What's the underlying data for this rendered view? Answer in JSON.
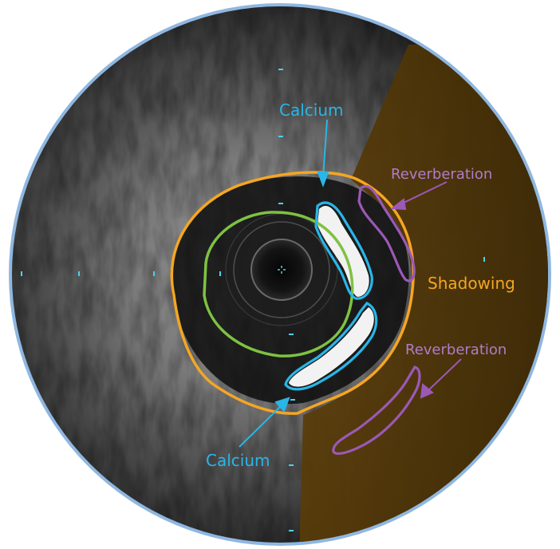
{
  "figure": {
    "annotations": {
      "calcium_top": "Calcium",
      "calcium_bottom": "Calcium",
      "reverberation_top": "Reverberation",
      "reverberation_bottom": "Reverberation",
      "shadowing": "Shadowing"
    },
    "colors": {
      "frame_ring": "#8fb7e0",
      "calcium": "#29b6e8",
      "lumen_border": "#7ec242",
      "vessel_border": "#f5a623",
      "shadow_region": "#6b4a10",
      "reverberation": "#9b59b6",
      "shadowing_text": "#f5a623"
    }
  }
}
